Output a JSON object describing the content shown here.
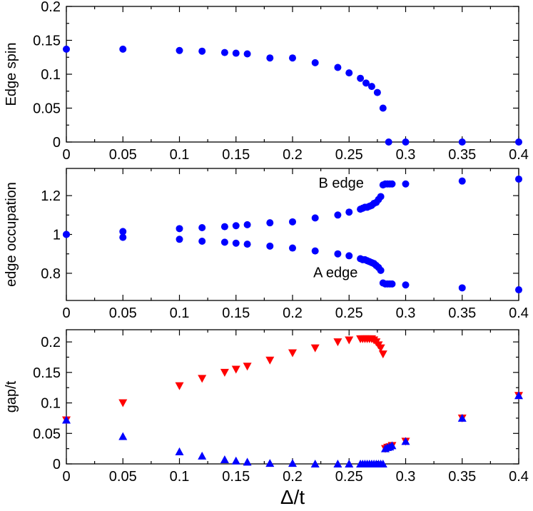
{
  "chart_data": [
    {
      "type": "scatter",
      "panel": "top",
      "ylabel": "Edge spin",
      "xlim": [
        0,
        0.4
      ],
      "ylim": [
        0,
        0.2
      ],
      "xticks": [
        "0",
        "0.05",
        "0.1",
        "0.15",
        "0.2",
        "0.25",
        "0.3",
        "0.35",
        "0.4"
      ],
      "yticks": [
        "0",
        "0.05",
        "0.1",
        "0.15",
        "0.2"
      ],
      "series": [
        {
          "name": "edge spin",
          "marker": "circle",
          "color": "#0000ff",
          "x": [
            0,
            0.05,
            0.1,
            0.12,
            0.14,
            0.15,
            0.16,
            0.18,
            0.2,
            0.22,
            0.24,
            0.25,
            0.26,
            0.265,
            0.27,
            0.275,
            0.28,
            0.285,
            0.3,
            0.35,
            0.4
          ],
          "y": [
            0.137,
            0.137,
            0.135,
            0.134,
            0.132,
            0.131,
            0.13,
            0.124,
            0.124,
            0.117,
            0.11,
            0.102,
            0.094,
            0.087,
            0.082,
            0.073,
            0.05,
            0,
            0,
            0,
            0
          ]
        }
      ]
    },
    {
      "type": "scatter",
      "panel": "middle",
      "ylabel": "edge occupation",
      "xlim": [
        0,
        0.4
      ],
      "ylim": [
        0.66,
        1.34
      ],
      "xticks": [
        "0",
        "0.05",
        "0.1",
        "0.15",
        "0.2",
        "0.25",
        "0.3",
        "0.35",
        "0.4"
      ],
      "yticks": [
        "0.8",
        "1",
        "1.2"
      ],
      "ytick_values": [
        0.8,
        1.0,
        1.2
      ],
      "annotations": [
        "B edge",
        "A edge"
      ],
      "series": [
        {
          "name": "B edge",
          "marker": "circle",
          "color": "#0000ff",
          "x": [
            0,
            0.05,
            0.1,
            0.12,
            0.14,
            0.15,
            0.16,
            0.18,
            0.2,
            0.22,
            0.24,
            0.25,
            0.26,
            0.262,
            0.264,
            0.266,
            0.268,
            0.27,
            0.272,
            0.274,
            0.276,
            0.278,
            0.28,
            0.282,
            0.284,
            0.286,
            0.288,
            0.3,
            0.35,
            0.4
          ],
          "y": [
            1.0,
            1.015,
            1.03,
            1.035,
            1.04,
            1.045,
            1.05,
            1.06,
            1.065,
            1.085,
            1.1,
            1.115,
            1.13,
            1.135,
            1.14,
            1.14,
            1.145,
            1.15,
            1.16,
            1.165,
            1.18,
            1.195,
            1.255,
            1.26,
            1.26,
            1.26,
            1.26,
            1.26,
            1.275,
            1.285
          ]
        },
        {
          "name": "A edge",
          "marker": "circle",
          "color": "#0000ff",
          "x": [
            0,
            0.05,
            0.1,
            0.12,
            0.14,
            0.15,
            0.16,
            0.18,
            0.2,
            0.22,
            0.24,
            0.25,
            0.26,
            0.262,
            0.264,
            0.266,
            0.268,
            0.27,
            0.272,
            0.274,
            0.276,
            0.278,
            0.28,
            0.282,
            0.284,
            0.286,
            0.288,
            0.3,
            0.35,
            0.4
          ],
          "y": [
            1.0,
            0.985,
            0.975,
            0.965,
            0.96,
            0.955,
            0.95,
            0.94,
            0.93,
            0.915,
            0.9,
            0.89,
            0.875,
            0.87,
            0.87,
            0.865,
            0.86,
            0.855,
            0.85,
            0.84,
            0.83,
            0.815,
            0.75,
            0.745,
            0.745,
            0.745,
            0.745,
            0.74,
            0.725,
            0.715
          ]
        }
      ]
    },
    {
      "type": "scatter",
      "panel": "bottom",
      "ylabel": "gap/t",
      "xlabel": "Δ/t",
      "xlim": [
        0,
        0.4
      ],
      "ylim": [
        0,
        0.22
      ],
      "xticks": [
        "0",
        "0.05",
        "0.1",
        "0.15",
        "0.2",
        "0.25",
        "0.3",
        "0.35",
        "0.4"
      ],
      "yticks": [
        "0",
        "0.05",
        "0.1",
        "0.15",
        "0.2"
      ],
      "series": [
        {
          "name": "gap (down triangles)",
          "marker": "triangle-down",
          "color": "#ff0000",
          "x": [
            0,
            0.05,
            0.1,
            0.12,
            0.14,
            0.15,
            0.16,
            0.18,
            0.2,
            0.22,
            0.24,
            0.25,
            0.26,
            0.262,
            0.264,
            0.266,
            0.268,
            0.27,
            0.272,
            0.274,
            0.276,
            0.278,
            0.28,
            0.282,
            0.284,
            0.286,
            0.288,
            0.3,
            0.35,
            0.4
          ],
          "y": [
            0.072,
            0.1,
            0.128,
            0.14,
            0.15,
            0.155,
            0.16,
            0.17,
            0.182,
            0.19,
            0.2,
            0.203,
            0.205,
            0.205,
            0.205,
            0.205,
            0.205,
            0.205,
            0.203,
            0.2,
            0.195,
            0.19,
            0.18,
            0.025,
            0.027,
            0.028,
            0.03,
            0.037,
            0.075,
            0.112
          ]
        },
        {
          "name": "gap (up triangles)",
          "marker": "triangle-up",
          "color": "#0000ff",
          "x": [
            0,
            0.05,
            0.1,
            0.12,
            0.14,
            0.15,
            0.16,
            0.18,
            0.2,
            0.22,
            0.24,
            0.25,
            0.26,
            0.262,
            0.264,
            0.266,
            0.268,
            0.27,
            0.272,
            0.274,
            0.276,
            0.278,
            0.28,
            0.282,
            0.284,
            0.286,
            0.288,
            0.3,
            0.35,
            0.4
          ],
          "y": [
            0.072,
            0.045,
            0.02,
            0.013,
            0.007,
            0.005,
            0.003,
            0.001,
            0.001,
            0.0,
            0.0,
            0.0,
            0.0,
            0.0,
            0.0,
            0.0,
            0.0,
            0.0,
            0.0,
            0.0,
            0.0,
            0.0,
            0.0,
            0.025,
            0.027,
            0.028,
            0.03,
            0.037,
            0.075,
            0.112
          ]
        }
      ]
    }
  ]
}
